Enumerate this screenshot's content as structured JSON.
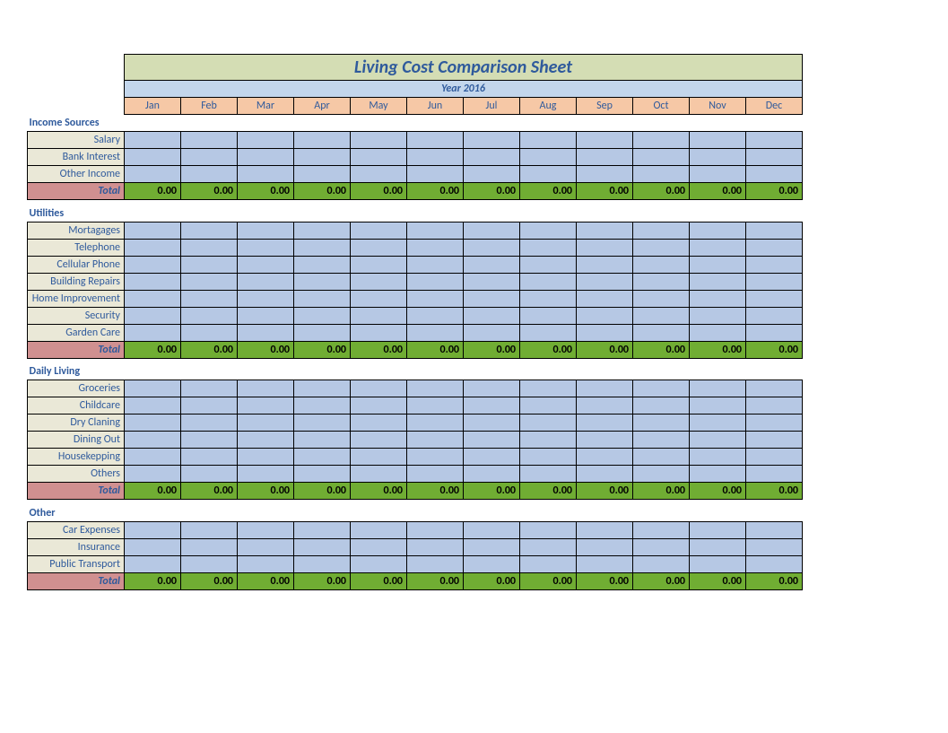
{
  "title": "Living Cost Comparison Sheet",
  "year_label": "Year 2016",
  "months": [
    "Jan",
    "Feb",
    "Mar",
    "Apr",
    "May",
    "Jun",
    "Jul",
    "Aug",
    "Sep",
    "Oct",
    "Nov",
    "Dec"
  ],
  "total_label": "Total",
  "total_value": "0.00",
  "sections": [
    {
      "name": "Income Sources",
      "rows": [
        "Salary",
        "Bank Interest",
        "Other Income"
      ]
    },
    {
      "name": "Utilities",
      "rows": [
        "Mortagages",
        "Telephone",
        "Cellular Phone",
        "Building Repairs",
        "Home Improvement",
        "Security",
        "Garden Care"
      ]
    },
    {
      "name": "Daily Living",
      "rows": [
        "Groceries",
        "Childcare",
        "Dry Claning",
        "Dining Out",
        "Housekepping",
        "Others"
      ]
    },
    {
      "name": "Other",
      "rows": [
        "Car Expenses",
        "Insurance",
        "Public Transport"
      ]
    }
  ],
  "colors": {
    "title_bg": "#d4ddb4",
    "year_bg": "#c3d6ec",
    "month_bg": "#f6c8a6",
    "label_bg": "#eae8d7",
    "data_bg": "#b6c8e4",
    "total_label_bg": "#d09090",
    "total_bg": "#70ad33",
    "text_blue": "#2f5a9c"
  }
}
